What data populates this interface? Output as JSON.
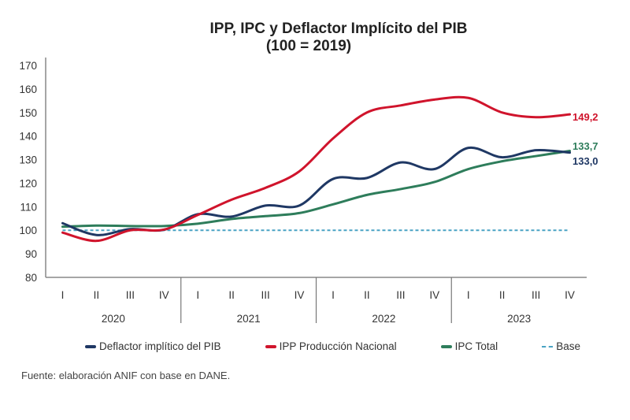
{
  "chart_data": {
    "type": "line",
    "title": "IPP, IPC y Deflactor Implícito del PIB",
    "subtitle": "(100 = 2019)",
    "xlabel": "",
    "ylabel": "",
    "ylim": [
      80,
      170
    ],
    "yticks": [
      80,
      90,
      100,
      110,
      120,
      130,
      140,
      150,
      160,
      170
    ],
    "grid": false,
    "legend_position": "bottom",
    "quarters": [
      "I",
      "II",
      "III",
      "IV",
      "I",
      "II",
      "III",
      "IV",
      "I",
      "II",
      "III",
      "IV",
      "I",
      "II",
      "III",
      "IV"
    ],
    "years": [
      "2020",
      "2021",
      "2022",
      "2023"
    ],
    "series": [
      {
        "name": "Deflactor implítico del PIB",
        "color": "#1f3864",
        "style": "solid",
        "values": [
          103.0,
          98.0,
          100.5,
          100.2,
          106.8,
          105.8,
          110.5,
          110.5,
          121.8,
          122.2,
          128.8,
          126.0,
          135.0,
          131.0,
          134.0,
          133.0
        ],
        "end_label": "133,0"
      },
      {
        "name": "IPP Producción Nacional",
        "color": "#d0142c",
        "style": "solid",
        "values": [
          99.0,
          95.5,
          100.0,
          100.3,
          106.5,
          113.0,
          118.0,
          125.0,
          139.0,
          150.0,
          153.0,
          155.5,
          156.2,
          150.0,
          148.0,
          149.2
        ],
        "end_label": "149,2"
      },
      {
        "name": "IPC Total",
        "color": "#2e7d5b",
        "style": "solid",
        "values": [
          101.5,
          102.0,
          101.8,
          101.8,
          102.8,
          104.8,
          106.0,
          107.3,
          111.0,
          115.0,
          117.5,
          120.5,
          126.0,
          129.3,
          131.5,
          133.7
        ],
        "end_label": "133,7"
      },
      {
        "name": "Base",
        "color": "#4aa3c4",
        "style": "dashed",
        "values": [
          100,
          100,
          100,
          100,
          100,
          100,
          100,
          100,
          100,
          100,
          100,
          100,
          100,
          100,
          100,
          100
        ],
        "end_label": ""
      }
    ]
  },
  "source": "Fuente: elaboración ANIF con base en DANE."
}
